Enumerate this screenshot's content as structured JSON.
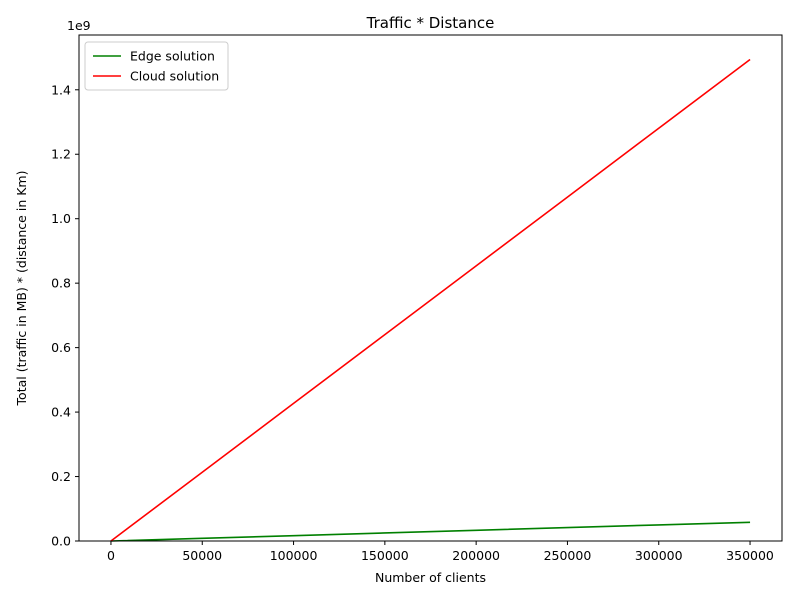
{
  "chart_data": {
    "type": "line",
    "title": "Traffic * Distance",
    "xlabel": "Number of clients",
    "ylabel": "Total (traffic in MB) * (distance in Km)",
    "y_offset_text": "1e9",
    "xlim": [
      -17500,
      367500
    ],
    "ylim": [
      0,
      1.57
    ],
    "x_ticks": [
      0,
      50000,
      100000,
      150000,
      200000,
      250000,
      300000,
      350000
    ],
    "x_tick_labels": [
      "0",
      "50000",
      "100000",
      "150000",
      "200000",
      "250000",
      "300000",
      "350000"
    ],
    "y_ticks": [
      0,
      0.2,
      0.4,
      0.6,
      0.8,
      1.0,
      1.2,
      1.4
    ],
    "y_tick_labels": [
      "0.0",
      "0.2",
      "0.4",
      "0.6",
      "0.8",
      "1.0",
      "1.2",
      "1.4"
    ],
    "grid": false,
    "legend_position": "top-left",
    "x": [
      0,
      50000,
      100000,
      150000,
      200000,
      250000,
      300000,
      350000
    ],
    "series": [
      {
        "name": "Edge solution",
        "color": "#008000",
        "values": [
          0,
          0.0083,
          0.0166,
          0.025,
          0.0333,
          0.0416,
          0.05,
          0.058
        ]
      },
      {
        "name": "Cloud solution",
        "color": "#ff0000",
        "values": [
          0,
          0.2134,
          0.4269,
          0.6403,
          0.8537,
          1.0671,
          1.2806,
          1.494
        ]
      }
    ]
  }
}
